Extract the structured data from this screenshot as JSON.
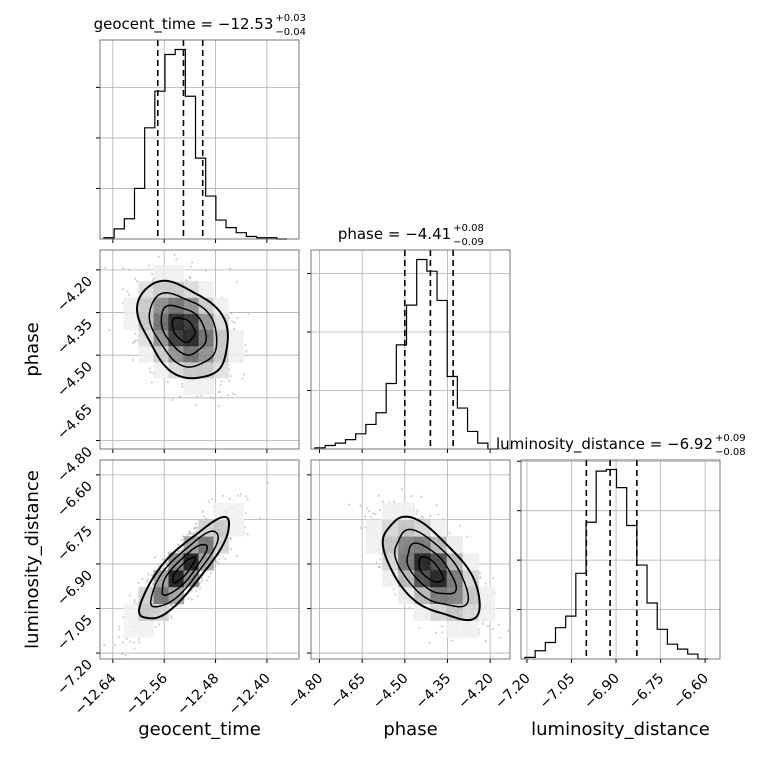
{
  "chart_data": {
    "type": "corner",
    "colors": {
      "ink": "#000000",
      "grid": "#b0b0b0",
      "points": "#9a9a9a"
    },
    "parameters": [
      {
        "name": "geocent_time",
        "label": "geocent_time",
        "range": [
          -12.66,
          -12.35
        ],
        "ticks": [
          -12.64,
          -12.56,
          -12.48,
          -12.4
        ],
        "tick_labels": [
          "−12.64",
          "−12.56",
          "−12.48",
          "−12.40"
        ],
        "title": "geocent_time = −12.53",
        "title_upper": "+0.03",
        "title_lower": "−0.04",
        "median": -12.53,
        "q_low": -12.57,
        "q_high": -12.5,
        "hist_counts": [
          1,
          8,
          16,
          40,
          88,
          117,
          146,
          150,
          113,
          64,
          34,
          15,
          9,
          5,
          2,
          1,
          1,
          0
        ]
      },
      {
        "name": "phase",
        "label": "phase",
        "range": [
          -4.83,
          -4.13
        ],
        "ticks": [
          -4.8,
          -4.65,
          -4.5,
          -4.35,
          -4.2
        ],
        "tick_labels": [
          "−4.80",
          "−4.65",
          "−4.50",
          "−4.35",
          "−4.20"
        ],
        "title": "phase = −4.41",
        "title_upper": "+0.08",
        "title_lower": "−0.09",
        "median": -4.41,
        "q_low": -4.5,
        "q_high": -4.33,
        "hist_counts": [
          1,
          3,
          5,
          8,
          13,
          21,
          31,
          56,
          89,
          123,
          162,
          152,
          127,
          62,
          35,
          15,
          5,
          0
        ]
      },
      {
        "name": "luminosity_distance",
        "label": "luminosity_distance",
        "range": [
          -7.22,
          -6.55
        ],
        "ticks": [
          -7.2,
          -7.05,
          -6.9,
          -6.75,
          -6.6
        ],
        "tick_labels": [
          "−7.20",
          "−7.05",
          "−6.90",
          "−6.75",
          "−6.60"
        ],
        "title": "luminosity_distance = −6.92",
        "title_upper": "+0.09",
        "title_lower": "−0.08",
        "median": -6.92,
        "q_low": -7.0,
        "q_high": -6.83,
        "hist_counts": [
          1,
          5,
          10,
          19,
          26,
          52,
          83,
          114,
          115,
          104,
          81,
          57,
          34,
          18,
          9,
          6,
          3,
          0
        ]
      }
    ],
    "pairs": [
      {
        "x": "geocent_time",
        "y": "phase",
        "mean": [
          -12.53,
          -4.41
        ],
        "sd": [
          0.035,
          0.085
        ],
        "corr": -0.35,
        "seed": 11
      },
      {
        "x": "geocent_time",
        "y": "luminosity_distance",
        "mean": [
          -12.53,
          -6.92
        ],
        "sd": [
          0.035,
          0.085
        ],
        "corr": 0.85,
        "seed": 23
      },
      {
        "x": "phase",
        "y": "luminosity_distance",
        "mean": [
          -4.41,
          -6.92
        ],
        "sd": [
          0.085,
          0.085
        ],
        "corr": -0.6,
        "seed": 37
      }
    ],
    "contour_levels_sigma": [
      0.5,
      1.0,
      1.5,
      2.0
    ],
    "grid": true
  }
}
